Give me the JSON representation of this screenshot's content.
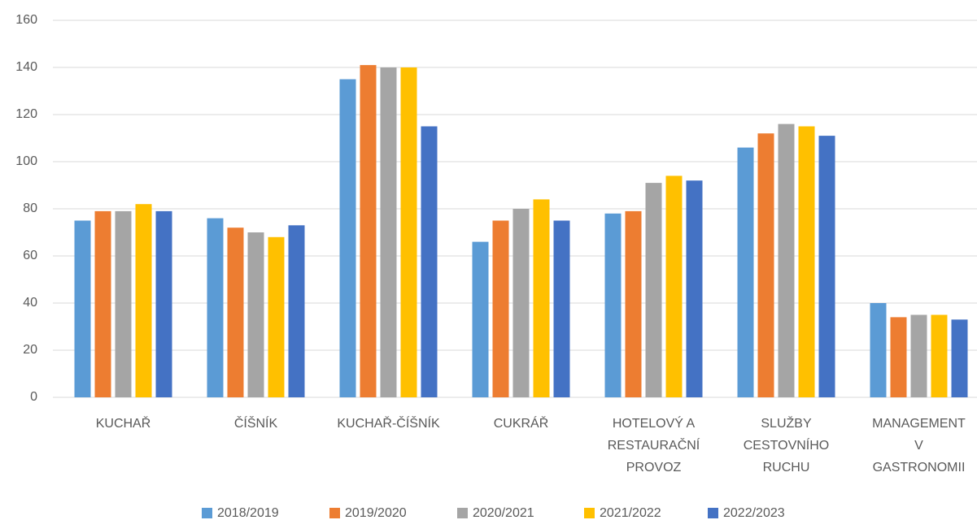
{
  "chart_data": {
    "type": "bar",
    "categories": [
      "KUCHAŘ",
      "ČÍŠNÍK",
      "KUCHAŘ-ČÍŠNÍK",
      "CUKRÁŘ",
      "HOTELOVÝ A\nRESTAURAČNÍ\nPROVOZ",
      "SLUŽBY\nCESTOVNÍHO\nRUCHU",
      "MANAGEMENT\nV\nGASTRONOMII"
    ],
    "series": [
      {
        "name": "2018/2019",
        "color": "#5b9bd5",
        "values": [
          75,
          76,
          135,
          66,
          78,
          106,
          40
        ]
      },
      {
        "name": "2019/2020",
        "color": "#ed7d31",
        "values": [
          79,
          72,
          141,
          75,
          79,
          112,
          34
        ]
      },
      {
        "name": "2020/2021",
        "color": "#a5a5a5",
        "values": [
          79,
          70,
          140,
          80,
          91,
          116,
          35
        ]
      },
      {
        "name": "2021/2022",
        "color": "#ffc000",
        "values": [
          82,
          68,
          140,
          84,
          94,
          115,
          35
        ]
      },
      {
        "name": "2022/2023",
        "color": "#4472c4",
        "values": [
          79,
          73,
          115,
          75,
          92,
          111,
          33
        ]
      }
    ],
    "ylim": [
      0,
      160
    ],
    "yticks": [
      0,
      20,
      40,
      60,
      80,
      100,
      120,
      140,
      160
    ],
    "grid": true,
    "legend": "bottom"
  }
}
